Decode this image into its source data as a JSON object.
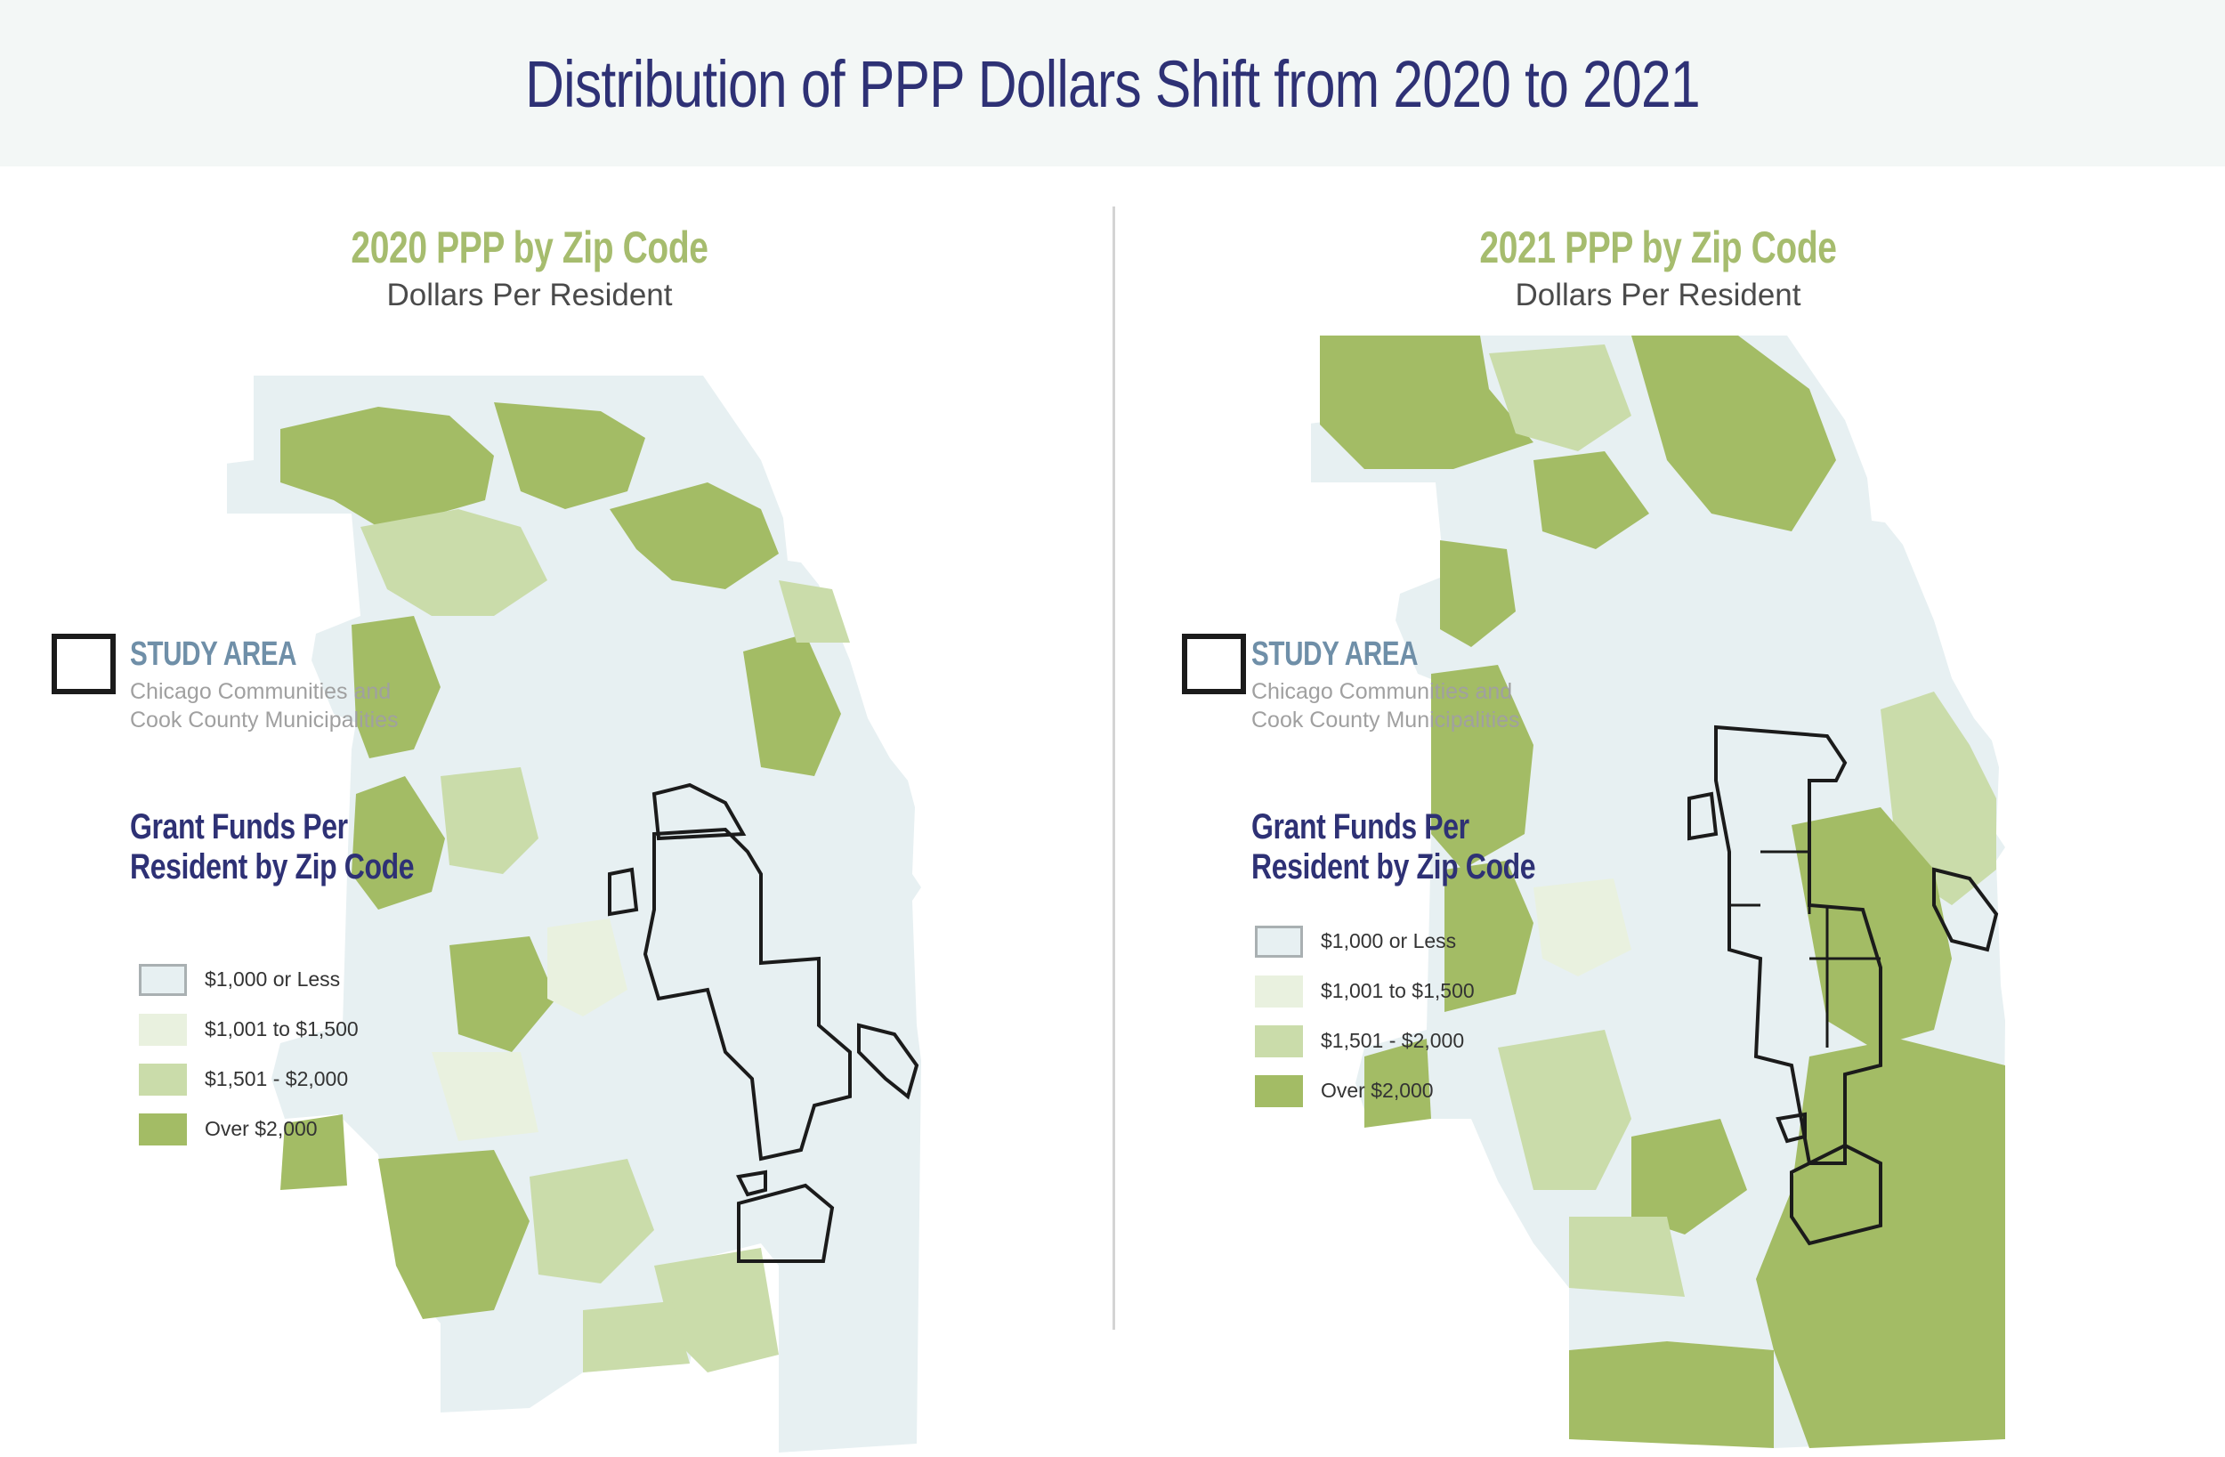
{
  "header": {
    "title": "Distribution of PPP Dollars Shift from 2020 to 2021"
  },
  "colors": {
    "tier1": "#e7f0f2",
    "tier2": "#e9f1df",
    "tier3": "#cadcaa",
    "tier4": "#a3bc65",
    "outline": "#1b1b1b",
    "title_green": "#a6bc6e",
    "title_navy": "#2e3175",
    "study_blue": "#6f8fa8"
  },
  "maps": [
    {
      "title": "2020 PPP by Zip Code",
      "subtitle": "Dollars Per Resident",
      "study_area": {
        "title": "STUDY AREA",
        "desc_line1": "Chicago Communities and",
        "desc_line2": "Cook County Municipalities"
      },
      "grant": {
        "line1": "Grant Funds Per",
        "line2": "Resident by Zip Code"
      },
      "legend": [
        {
          "label": "$1,000 or Less",
          "tier": "tier1"
        },
        {
          "label": "$1,001 to $1,500",
          "tier": "tier2"
        },
        {
          "label": "$1,501 - $2,000",
          "tier": "tier3"
        },
        {
          "label": "Over $2,000",
          "tier": "tier4"
        }
      ]
    },
    {
      "title": "2021 PPP by Zip Code",
      "subtitle": "Dollars Per Resident",
      "study_area": {
        "title": "STUDY AREA",
        "desc_line1": "Chicago Communities and",
        "desc_line2": "Cook County Municipalities"
      },
      "grant": {
        "line1": "Grant Funds Per",
        "line2": "Resident by Zip Code"
      },
      "legend": [
        {
          "label": "$1,000 or Less",
          "tier": "tier1"
        },
        {
          "label": "$1,001 to $1,500",
          "tier": "tier2"
        },
        {
          "label": "$1,501 - $2,000",
          "tier": "tier3"
        },
        {
          "label": "Over $2,000",
          "tier": "tier4"
        }
      ]
    }
  ]
}
